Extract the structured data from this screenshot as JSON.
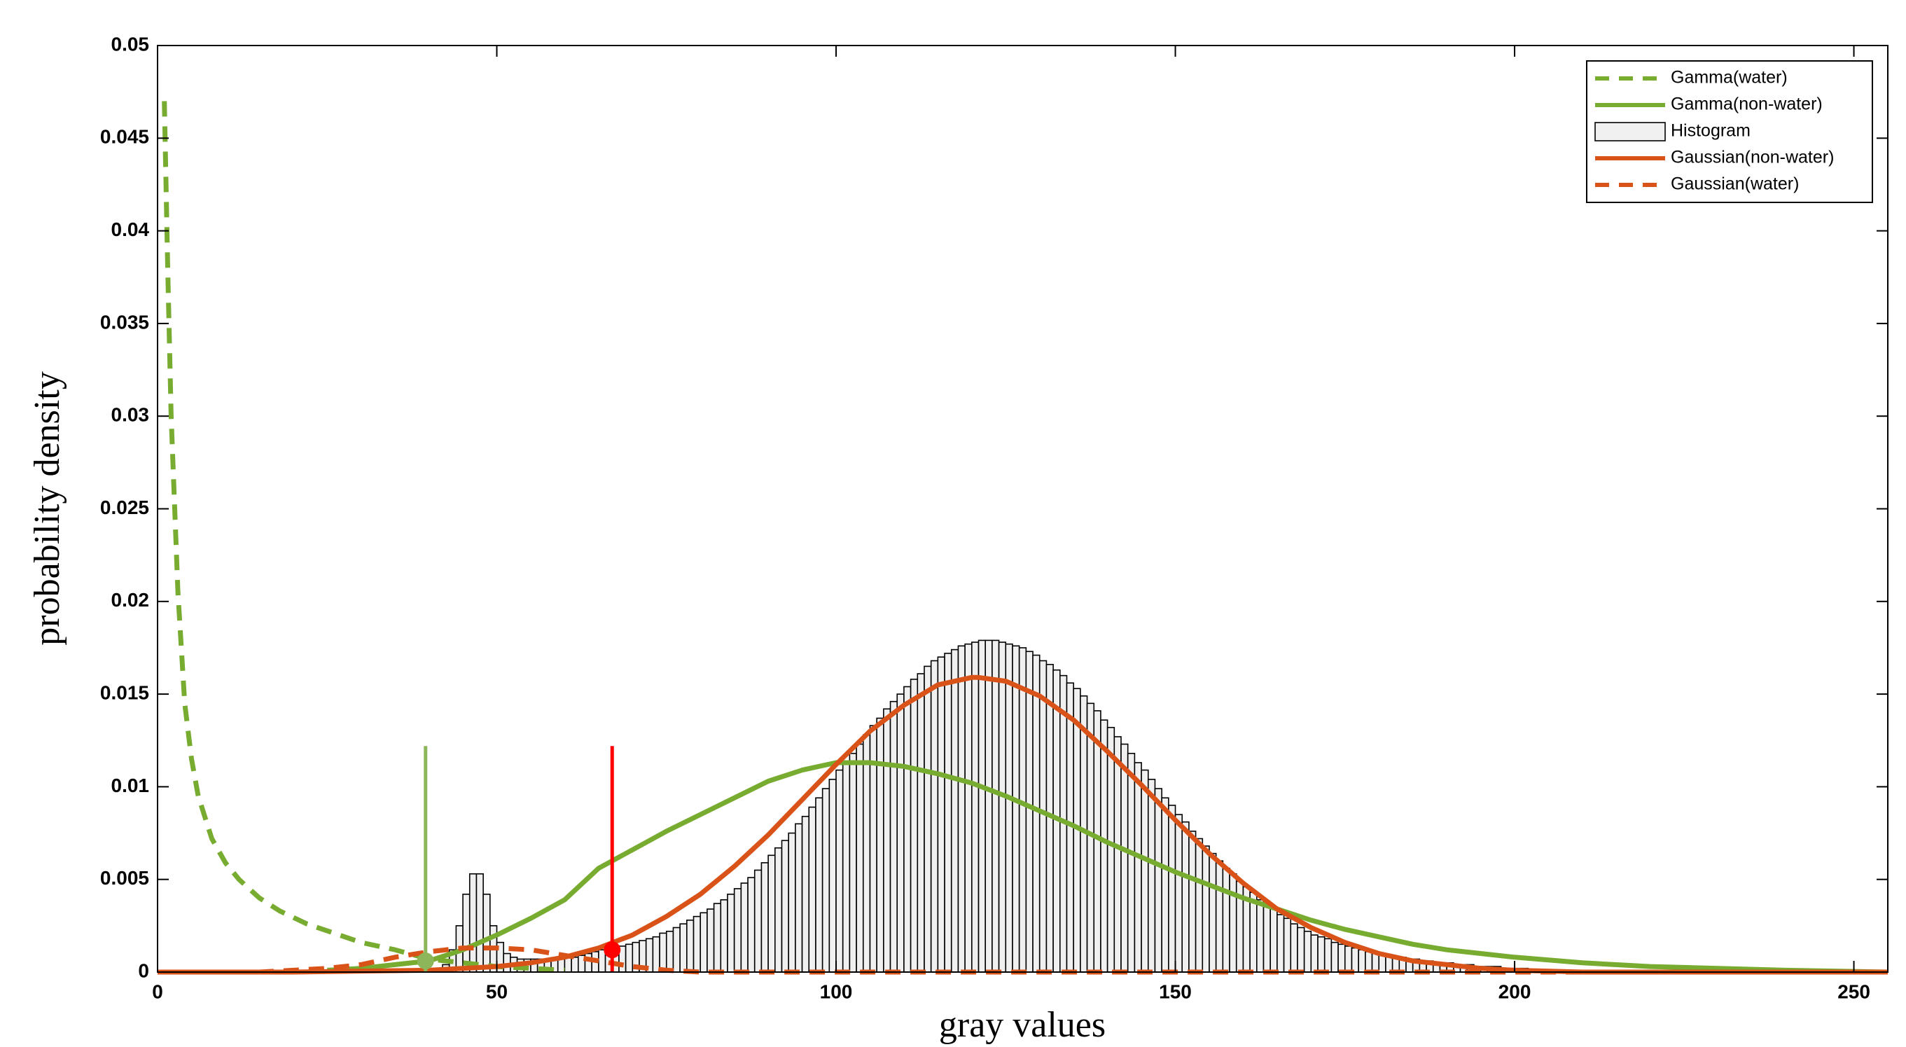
{
  "chart_data": {
    "type": "histogram",
    "xlabel": "gray values",
    "ylabel": "probability density",
    "xlim": [
      0,
      255
    ],
    "ylim": [
      0,
      0.05
    ],
    "xticks": [
      0,
      50,
      100,
      150,
      200,
      250
    ],
    "yticks": [
      0,
      0.005,
      0.01,
      0.015,
      0.02,
      0.025,
      0.03,
      0.035,
      0.04,
      0.045,
      0.05
    ],
    "legend": "upper right",
    "series": [
      {
        "name": "Gamma(water)",
        "kind": "line",
        "color": "#77ac30",
        "linestyle": "--",
        "x": [
          1,
          1.5,
          2,
          3,
          4,
          5,
          6,
          8,
          10,
          12,
          15,
          18,
          22,
          26,
          30,
          35,
          40,
          45,
          50,
          55,
          60
        ],
        "values": [
          0.047,
          0.038,
          0.03,
          0.0205,
          0.0145,
          0.0115,
          0.0095,
          0.0072,
          0.0059,
          0.005,
          0.004,
          0.0033,
          0.0026,
          0.0021,
          0.0016,
          0.0012,
          0.0007,
          0.0005,
          0.0003,
          0.0002,
          0.0001
        ]
      },
      {
        "name": "Gamma(non-water)",
        "kind": "line",
        "color": "#77ac30",
        "linestyle": "-",
        "x": [
          25,
          30,
          35,
          40,
          45,
          50,
          55,
          60,
          65,
          70,
          75,
          80,
          85,
          90,
          95,
          100,
          105,
          110,
          115,
          120,
          125,
          130,
          135,
          140,
          145,
          150,
          155,
          160,
          165,
          170,
          175,
          180,
          185,
          190,
          195,
          200,
          210,
          220,
          230,
          240,
          255
        ],
        "values": [
          0.0001,
          0.0002,
          0.0004,
          0.0006,
          0.0012,
          0.002,
          0.0029,
          0.0039,
          0.0056,
          0.0066,
          0.0076,
          0.0085,
          0.0094,
          0.0103,
          0.0109,
          0.0113,
          0.0113,
          0.0111,
          0.0107,
          0.0102,
          0.0095,
          0.0087,
          0.0079,
          0.007,
          0.0062,
          0.0054,
          0.0047,
          0.004,
          0.0034,
          0.0028,
          0.0023,
          0.0019,
          0.0015,
          0.0012,
          0.001,
          0.0008,
          0.0005,
          0.0003,
          0.0002,
          0.0001,
          0
        ]
      },
      {
        "name": "Histogram",
        "kind": "histogram",
        "color": "#f0f0f0",
        "edgecolor": "#000000",
        "bins": [
          40,
          41,
          42,
          43,
          44,
          45,
          46,
          47,
          48,
          49,
          50,
          51,
          52,
          53,
          54,
          55,
          56,
          57,
          58,
          59,
          60,
          61,
          62,
          63,
          64,
          65,
          66,
          67,
          68,
          69,
          70,
          71,
          72,
          73,
          74,
          75,
          76,
          77,
          78,
          79,
          80,
          81,
          82,
          83,
          84,
          85,
          86,
          87,
          88,
          89,
          90,
          91,
          92,
          93,
          94,
          95,
          96,
          97,
          98,
          99,
          100,
          101,
          102,
          103,
          104,
          105,
          106,
          107,
          108,
          109,
          110,
          111,
          112,
          113,
          114,
          115,
          116,
          117,
          118,
          119,
          120,
          121,
          122,
          123,
          124,
          125,
          126,
          127,
          128,
          129,
          130,
          131,
          132,
          133,
          134,
          135,
          136,
          137,
          138,
          139,
          140,
          141,
          142,
          143,
          144,
          145,
          146,
          147,
          148,
          149,
          150,
          151,
          152,
          153,
          154,
          155,
          156,
          157,
          158,
          159,
          160,
          161,
          162,
          163,
          164,
          165,
          166,
          167,
          168,
          169,
          170,
          171,
          172,
          173,
          174,
          175,
          176,
          177,
          178,
          179,
          180,
          181,
          182,
          183,
          184,
          185,
          186,
          187,
          188,
          189,
          190,
          191,
          192,
          193,
          194,
          195,
          196,
          197,
          198,
          199,
          200,
          201,
          202,
          203,
          204,
          205,
          206
        ],
        "values": [
          0.0001,
          0.0001,
          0.0004,
          0.0012,
          0.0025,
          0.0042,
          0.0053,
          0.0053,
          0.0042,
          0.0025,
          0.0016,
          0.001,
          0.0008,
          0.0007,
          0.0007,
          0.0007,
          0.0007,
          0.0007,
          0.0007,
          0.0008,
          0.0008,
          0.0008,
          0.0009,
          0.001,
          0.0011,
          0.0012,
          0.0013,
          0.0013,
          0.0014,
          0.0015,
          0.0016,
          0.0017,
          0.0018,
          0.0019,
          0.0021,
          0.0022,
          0.0024,
          0.0026,
          0.0028,
          0.003,
          0.0032,
          0.0034,
          0.0037,
          0.0039,
          0.0042,
          0.0045,
          0.0048,
          0.0051,
          0.0055,
          0.0059,
          0.0063,
          0.0067,
          0.0071,
          0.0075,
          0.008,
          0.0084,
          0.0089,
          0.0094,
          0.0099,
          0.0104,
          0.0109,
          0.0113,
          0.0118,
          0.0123,
          0.0128,
          0.0133,
          0.0137,
          0.0142,
          0.0146,
          0.015,
          0.0154,
          0.0158,
          0.0161,
          0.0165,
          0.0168,
          0.017,
          0.0172,
          0.0174,
          0.0176,
          0.0177,
          0.0178,
          0.0179,
          0.0179,
          0.0179,
          0.0178,
          0.0177,
          0.0176,
          0.0175,
          0.0173,
          0.0171,
          0.0168,
          0.0166,
          0.0163,
          0.016,
          0.0156,
          0.0153,
          0.0149,
          0.0145,
          0.0141,
          0.0136,
          0.0132,
          0.0127,
          0.0123,
          0.0118,
          0.0113,
          0.0109,
          0.0104,
          0.0099,
          0.0094,
          0.009,
          0.0085,
          0.0081,
          0.0076,
          0.0072,
          0.0068,
          0.0064,
          0.006,
          0.0056,
          0.0053,
          0.0049,
          0.0046,
          0.0043,
          0.0039,
          0.0037,
          0.0034,
          0.0031,
          0.0029,
          0.0026,
          0.0024,
          0.0022,
          0.002,
          0.0019,
          0.0018,
          0.0016,
          0.0015,
          0.0014,
          0.0013,
          0.0012,
          0.0011,
          0.001,
          0.001,
          0.0009,
          0.0008,
          0.0008,
          0.0007,
          0.0007,
          0.0006,
          0.0006,
          0.0005,
          0.0005,
          0.0005,
          0.0004,
          0.0004,
          0.0004,
          0.0003,
          0.0003,
          0.0003,
          0.0003,
          0.0002,
          0.0002,
          0.0002,
          0.0002,
          0.0001,
          0.0001,
          0.0001,
          0.0001
        ]
      },
      {
        "name": "Gaussian(non-water)",
        "kind": "line",
        "color": "#d95319",
        "linestyle": "-",
        "x": [
          0,
          20,
          40,
          45,
          50,
          55,
          60,
          65,
          70,
          75,
          80,
          85,
          90,
          95,
          100,
          105,
          110,
          115,
          120,
          121,
          125,
          130,
          135,
          140,
          145,
          150,
          155,
          160,
          165,
          170,
          175,
          180,
          185,
          190,
          195,
          200,
          210,
          255
        ],
        "values": [
          0,
          0,
          0.0001,
          0.0002,
          0.0003,
          0.0005,
          0.0008,
          0.0013,
          0.002,
          0.003,
          0.0042,
          0.0057,
          0.0074,
          0.0093,
          0.0112,
          0.013,
          0.0144,
          0.0155,
          0.0159,
          0.0159,
          0.0157,
          0.0149,
          0.0136,
          0.0119,
          0.0101,
          0.0082,
          0.0064,
          0.0048,
          0.0034,
          0.0024,
          0.0016,
          0.001,
          0.0006,
          0.0004,
          0.0002,
          0.0001,
          0,
          0
        ]
      },
      {
        "name": "Gaussian(water)",
        "kind": "line",
        "color": "#d95319",
        "linestyle": "--",
        "x": [
          0,
          15,
          20,
          25,
          30,
          35,
          40,
          45,
          50,
          55,
          60,
          65,
          70,
          75,
          80,
          90,
          100,
          150,
          200,
          255
        ],
        "values": [
          0,
          0,
          0.0001,
          0.0002,
          0.0004,
          0.0008,
          0.0011,
          0.0013,
          0.0013,
          0.0012,
          0.0009,
          0.0006,
          0.0003,
          0.0001,
          0,
          0,
          0,
          0,
          0,
          0
        ]
      }
    ],
    "markers": [
      {
        "x": 39.5,
        "y": 0.0006,
        "line_top": 0.0122,
        "color": "#8db65a"
      },
      {
        "x": 67,
        "y": 0.0012,
        "line_top": 0.0122,
        "color": "#ff0000"
      }
    ]
  }
}
